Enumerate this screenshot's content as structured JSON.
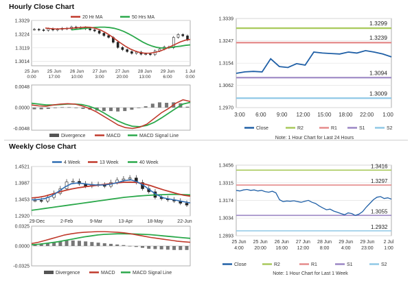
{
  "sections": {
    "hourly_title": "Hourly Close Chart",
    "weekly_title": "Weekly Close Chart"
  },
  "colors": {
    "close": "#1f5fa6",
    "ma20": "#c0392b",
    "ma50": "#2aa84a",
    "ma4": "#2f6db3",
    "ma13": "#c0392b",
    "ma40": "#2aa84a",
    "divergence": "#555555",
    "macd": "#c0392b",
    "signal": "#2aa84a",
    "r2": "#a8c95a",
    "r1": "#e58a8a",
    "s1": "#9b86c4",
    "s2": "#8fc8e6"
  },
  "chart_data": [
    {
      "id": "hourly_price",
      "type": "candlestick",
      "title": "Hourly Close Chart",
      "legend": [
        "20 Hr MA",
        "50 Hrs MA"
      ],
      "y_ticks": [
        "1.3329",
        "1.3224",
        "1.3119",
        "1.3014"
      ],
      "ylim": [
        1.298,
        1.333
      ],
      "x_labels": [
        [
          "25 Jun",
          "0:00"
        ],
        [
          "25 Jun",
          "17:00"
        ],
        [
          "26 Jun",
          "10:00"
        ],
        [
          "27 Jun",
          "3:00"
        ],
        [
          "27 Jun",
          "20:00"
        ],
        [
          "28 Jun",
          "13:00"
        ],
        [
          "29 Jun",
          "6:00"
        ],
        [
          "1 Jul",
          "0:00"
        ]
      ],
      "close": [
        1.3262,
        1.3258,
        1.3254,
        1.3266,
        1.3257,
        1.3262,
        1.327,
        1.3266,
        1.328,
        1.327,
        1.3276,
        1.3266,
        1.3258,
        1.325,
        1.3232,
        1.3214,
        1.32,
        1.3162,
        1.3122,
        1.3105,
        1.309,
        1.3076,
        1.3086,
        1.307,
        1.3072,
        1.3066,
        1.3096,
        1.311,
        1.3126,
        1.312,
        1.32,
        1.3222,
        1.3212,
        1.318
      ],
      "ma20": [
        1.3272,
        1.3268,
        1.3265,
        1.3266,
        1.3268,
        1.327,
        1.3273,
        1.3276,
        1.3279,
        1.3278,
        1.327,
        1.3258,
        1.3238,
        1.3214,
        1.3186,
        1.3158,
        1.3132,
        1.311,
        1.3094,
        1.3082,
        1.3077,
        1.3078,
        1.3084,
        1.3094,
        1.311,
        1.3128,
        1.3146,
        1.3164,
        1.3178,
        1.3184
      ],
      "ma50": [
        1.3258,
        1.3262,
        1.3266,
        1.327,
        1.3274,
        1.3277,
        1.3279,
        1.3279,
        1.3276,
        1.327,
        1.326,
        1.3246,
        1.3228,
        1.3208,
        1.3186,
        1.3164,
        1.3146,
        1.3132,
        1.3122,
        1.3118,
        1.3118,
        1.3122,
        1.3128,
        1.3132,
        1.3138,
        1.3142
      ]
    },
    {
      "id": "hourly_macd",
      "type": "line",
      "legend": [
        "Divergence",
        "MACD",
        "MACD Signal Line"
      ],
      "y_ticks": [
        "0.0048",
        "0.0000",
        "-0.0048"
      ],
      "ylim": [
        -0.0052,
        0.0052
      ],
      "macd": [
        0.0006,
        0.0004,
        0.0003,
        0.0006,
        0.0008,
        0.0009,
        0.0008,
        0.0004,
        -0.0002,
        -0.001,
        -0.002,
        -0.003,
        -0.004,
        -0.0046,
        -0.0048,
        -0.0045,
        -0.0038,
        -0.0025,
        -0.0012,
        -0.0002,
        0.001,
        0.0018,
        0.0014
      ],
      "signal": [
        0.001,
        0.0008,
        0.0006,
        0.0006,
        0.0007,
        0.0008,
        0.0008,
        0.0007,
        0.0003,
        -0.0003,
        -0.0012,
        -0.0022,
        -0.0031,
        -0.0038,
        -0.0043,
        -0.0044,
        -0.0041,
        -0.0034,
        -0.0024,
        -0.0013,
        -0.0002,
        0.0008,
        0.0012
      ],
      "divergence": [
        -0.0004,
        -0.0004,
        -0.0003,
        0.0,
        0.0001,
        0.0001,
        0.0,
        -0.0003,
        -0.0005,
        -0.0007,
        -0.0008,
        -0.0008,
        -0.0009,
        -0.0008,
        -0.0005,
        -0.0001,
        0.0003,
        0.0009,
        0.0012,
        0.0011,
        0.0012,
        0.001,
        0.0002
      ]
    },
    {
      "id": "hourly_sr",
      "type": "line",
      "y_ticks": [
        "1.3339",
        "1.3247",
        "1.3154",
        "1.3062",
        "1.2970"
      ],
      "ylim": [
        1.297,
        1.3339
      ],
      "x_labels": [
        "3:00",
        "6:00",
        "9:00",
        "12:00",
        "15:00",
        "18:00",
        "22:00",
        "1:00"
      ],
      "levels": [
        {
          "name": "R2",
          "value": 1.3299,
          "label": "1.3299"
        },
        {
          "name": "R1",
          "value": 1.3239,
          "label": "1.3239"
        },
        {
          "name": "S1",
          "value": 1.3094,
          "label": "1.3094"
        },
        {
          "name": "S2",
          "value": 1.3009,
          "label": "1.3009"
        }
      ],
      "close": [
        1.3112,
        1.3118,
        1.312,
        1.3118,
        1.3172,
        1.314,
        1.3136,
        1.3152,
        1.3146,
        1.32,
        1.3196,
        1.3194,
        1.3192,
        1.32,
        1.3196,
        1.3206,
        1.32,
        1.3192,
        1.318
      ],
      "legend": [
        "Close",
        "R2",
        "R1",
        "S1",
        "S2"
      ],
      "note": "Note: 1 Hour Chart for Last 24 Hours"
    },
    {
      "id": "weekly_price",
      "type": "candlestick",
      "title": "Weekly Close Chart",
      "legend": [
        "4 Week",
        "13 Week",
        "40 Week"
      ],
      "y_ticks": [
        "1.4521",
        "1.3987",
        "1.3453",
        "1.2920"
      ],
      "ylim": [
        1.292,
        1.4521
      ],
      "x_labels": [
        "29-Dec",
        "2-Feb",
        "9-Mar",
        "13-Apr",
        "18-May",
        "22-Jun"
      ],
      "close": [
        1.342,
        1.34,
        1.352,
        1.365,
        1.38,
        1.402,
        1.404,
        1.396,
        1.388,
        1.394,
        1.392,
        1.388,
        1.4,
        1.408,
        1.412,
        1.415,
        1.4,
        1.38,
        1.37,
        1.352,
        1.348,
        1.344,
        1.34,
        1.333,
        1.327
      ],
      "ma4": [
        1.344,
        1.345,
        1.348,
        1.356,
        1.37,
        1.385,
        1.396,
        1.399,
        1.396,
        1.393,
        1.392,
        1.392,
        1.395,
        1.4,
        1.406,
        1.409,
        1.402,
        1.39,
        1.374,
        1.36,
        1.35,
        1.346,
        1.342,
        1.338,
        1.334
      ],
      "ma13": [
        1.35,
        1.352,
        1.356,
        1.362,
        1.368,
        1.374,
        1.379,
        1.383,
        1.386,
        1.389,
        1.3915,
        1.394,
        1.3965,
        1.399,
        1.401,
        1.4015,
        1.4,
        1.396,
        1.39,
        1.383,
        1.376,
        1.37,
        1.364,
        1.359,
        1.356
      ],
      "ma40": [
        1.31,
        1.313,
        1.316,
        1.319,
        1.322,
        1.325,
        1.328,
        1.331,
        1.334,
        1.337,
        1.34,
        1.343,
        1.346,
        1.349,
        1.352,
        1.354,
        1.356,
        1.3575,
        1.359,
        1.36,
        1.361,
        1.3615,
        1.3615,
        1.361,
        1.36
      ]
    },
    {
      "id": "weekly_macd",
      "type": "line",
      "legend": [
        "Divergence",
        "MACD",
        "MACD Signal Line"
      ],
      "y_ticks": [
        "0.0325",
        "0.0000",
        "-0.0325"
      ],
      "ylim": [
        -0.0325,
        0.0325
      ],
      "macd": [
        0.004,
        0.006,
        0.009,
        0.012,
        0.015,
        0.018,
        0.02,
        0.0215,
        0.0225,
        0.023,
        0.0235,
        0.0235,
        0.023,
        0.0225,
        0.0215,
        0.02,
        0.018,
        0.016,
        0.014,
        0.0125,
        0.011,
        0.0095,
        0.008,
        0.007,
        0.006
      ],
      "signal": [
        0.002,
        0.0028,
        0.004,
        0.0055,
        0.007,
        0.009,
        0.011,
        0.013,
        0.015,
        0.0165,
        0.018,
        0.019,
        0.0195,
        0.02,
        0.02,
        0.0198,
        0.0195,
        0.019,
        0.0185,
        0.0175,
        0.0165,
        0.0155,
        0.0145,
        0.0135,
        0.0125
      ],
      "divergence": [
        0.002,
        0.0032,
        0.005,
        0.0065,
        0.008,
        0.009,
        0.009,
        0.0085,
        0.0075,
        0.0065,
        0.0055,
        0.0045,
        0.0035,
        0.0025,
        0.0015,
        0.0002,
        -0.0015,
        -0.003,
        -0.0045,
        -0.005,
        -0.0055,
        -0.006,
        -0.0065,
        -0.0065,
        -0.0065
      ]
    },
    {
      "id": "weekly_sr",
      "type": "line",
      "y_ticks": [
        "1.3456",
        "1.3315",
        "1.3174",
        "1.3034",
        "1.2893"
      ],
      "ylim": [
        1.2893,
        1.3456
      ],
      "x_labels": [
        [
          "25 Jun",
          "4:00"
        ],
        [
          "25 Jun",
          "20:00"
        ],
        [
          "26 Jun",
          "16:00"
        ],
        [
          "27 Jun",
          "12:00"
        ],
        [
          "28 Jun",
          "8:00"
        ],
        [
          "29 Jun",
          "4:00"
        ],
        [
          "29 Jun",
          "23:00"
        ],
        [
          "2 Jul",
          "1:00"
        ]
      ],
      "levels": [
        {
          "name": "R2",
          "value": 1.3416,
          "label": "1.3416"
        },
        {
          "name": "R1",
          "value": 1.3297,
          "label": "1.3297"
        },
        {
          "name": "S1",
          "value": 1.3055,
          "label": "1.3055"
        },
        {
          "name": "S2",
          "value": 1.2932,
          "label": "1.2932"
        }
      ],
      "close": [
        1.3255,
        1.325,
        1.3258,
        1.3262,
        1.3255,
        1.3258,
        1.325,
        1.3255,
        1.3245,
        1.324,
        1.3248,
        1.3235,
        1.318,
        1.3165,
        1.317,
        1.3168,
        1.3172,
        1.3165,
        1.316,
        1.3168,
        1.3175,
        1.316,
        1.315,
        1.313,
        1.3115,
        1.31,
        1.3105,
        1.309,
        1.308,
        1.307,
        1.306,
        1.3075,
        1.307,
        1.3055,
        1.3065,
        1.3085,
        1.312,
        1.315,
        1.318,
        1.32,
        1.3205,
        1.319,
        1.3195,
        1.3185
      ],
      "legend": [
        "Close",
        "R2",
        "R1",
        "S1",
        "S2"
      ],
      "note": "Note: 1 Hour Chart for Last 1 Week"
    }
  ]
}
